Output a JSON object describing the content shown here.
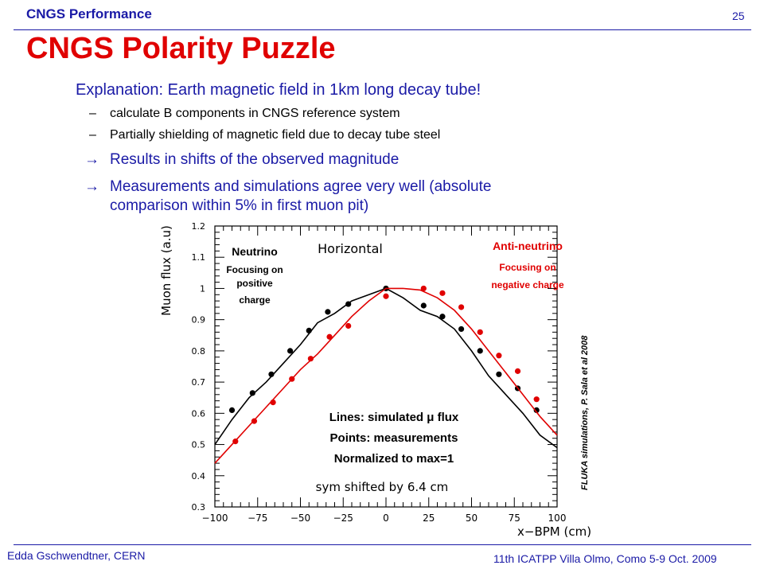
{
  "header": {
    "section": "CNGS Performance",
    "page_number": "25"
  },
  "title": "CNGS Polarity Puzzle",
  "body": {
    "lead": "Explanation: Earth magnetic field in 1km long decay tube!",
    "bullets": [
      "calculate B components in CNGS reference system",
      "Partially shielding of magnetic field due to decay tube steel"
    ],
    "arrows": [
      "Results in shifts of the observed magnitude",
      "Measurements and simulations agree very well (absolute",
      "comparison within 5% in first muon pit)"
    ]
  },
  "footer": {
    "author": "Edda Gschwendtner, CERN",
    "event": "11th ICATPP Villa Olmo, Como 5-9 Oct. 2009"
  },
  "chart_data": {
    "type": "scatter",
    "title": "Horizontal",
    "xlabel": "x−BPM (cm)",
    "ylabel": "Muon flux (a.u)",
    "xlim": [
      -100,
      100
    ],
    "ylim": [
      0.3,
      1.2
    ],
    "xticks": [
      "−100",
      "−75",
      "−50",
      "−25",
      "0",
      "25",
      "50",
      "75",
      "100"
    ],
    "yticks": [
      "0.3",
      "0.4",
      "0.5",
      "0.6",
      "0.7",
      "0.8",
      "0.9",
      "1",
      "1.1",
      "1.2"
    ],
    "colors": {
      "neutrino": "#000000",
      "antineutrino": "#e00000"
    },
    "series": [
      {
        "name": "Neutrino",
        "kind": "points",
        "x": [
          -90,
          -78,
          -67,
          -56,
          -45,
          -34,
          -22,
          0,
          22,
          33,
          44,
          55,
          66,
          77,
          88
        ],
        "y": [
          0.61,
          0.665,
          0.725,
          0.8,
          0.865,
          0.925,
          0.95,
          1.0,
          0.945,
          0.91,
          0.87,
          0.8,
          0.725,
          0.68,
          0.61
        ]
      },
      {
        "name": "Anti-neutrino",
        "kind": "points",
        "x": [
          -88,
          -77,
          -66,
          -55,
          -44,
          -33,
          -22,
          0,
          22,
          33,
          44,
          55,
          66,
          77,
          88
        ],
        "y": [
          0.51,
          0.575,
          0.635,
          0.71,
          0.775,
          0.845,
          0.88,
          0.975,
          1.0,
          0.985,
          0.94,
          0.86,
          0.785,
          0.735,
          0.645
        ]
      },
      {
        "name": "Neutrino simulated",
        "kind": "line",
        "x": [
          -100,
          -90,
          -80,
          -70,
          -60,
          -50,
          -40,
          -30,
          -20,
          -10,
          0,
          10,
          20,
          30,
          40,
          50,
          60,
          70,
          80,
          90,
          100
        ],
        "y": [
          0.5,
          0.58,
          0.65,
          0.7,
          0.76,
          0.82,
          0.89,
          0.92,
          0.96,
          0.98,
          1.0,
          0.97,
          0.93,
          0.91,
          0.87,
          0.8,
          0.72,
          0.66,
          0.6,
          0.53,
          0.49
        ]
      },
      {
        "name": "Anti-neutrino simulated",
        "kind": "line",
        "x": [
          -100,
          -90,
          -80,
          -70,
          -60,
          -50,
          -40,
          -30,
          -20,
          -10,
          0,
          10,
          20,
          30,
          40,
          50,
          60,
          70,
          80,
          90,
          100
        ],
        "y": [
          0.44,
          0.5,
          0.56,
          0.62,
          0.68,
          0.74,
          0.79,
          0.85,
          0.91,
          0.96,
          1.0,
          1.0,
          0.995,
          0.97,
          0.93,
          0.87,
          0.8,
          0.73,
          0.66,
          0.59,
          0.53
        ]
      }
    ],
    "annotations": {
      "neutrino_title": "Neutrino",
      "neutrino_sub": [
        "Focusing on",
        "positive",
        "charge"
      ],
      "anti_title": "Anti-neutrino",
      "anti_sub": [
        "Focusing on",
        "negative charge"
      ],
      "legend": [
        "Lines: simulated μ flux",
        "Points: measurements",
        "Normalized to max=1"
      ],
      "sym": "sym shifted by 6.4 cm",
      "credit": "FLUKA simulations, P. Sala et al 2008"
    }
  }
}
